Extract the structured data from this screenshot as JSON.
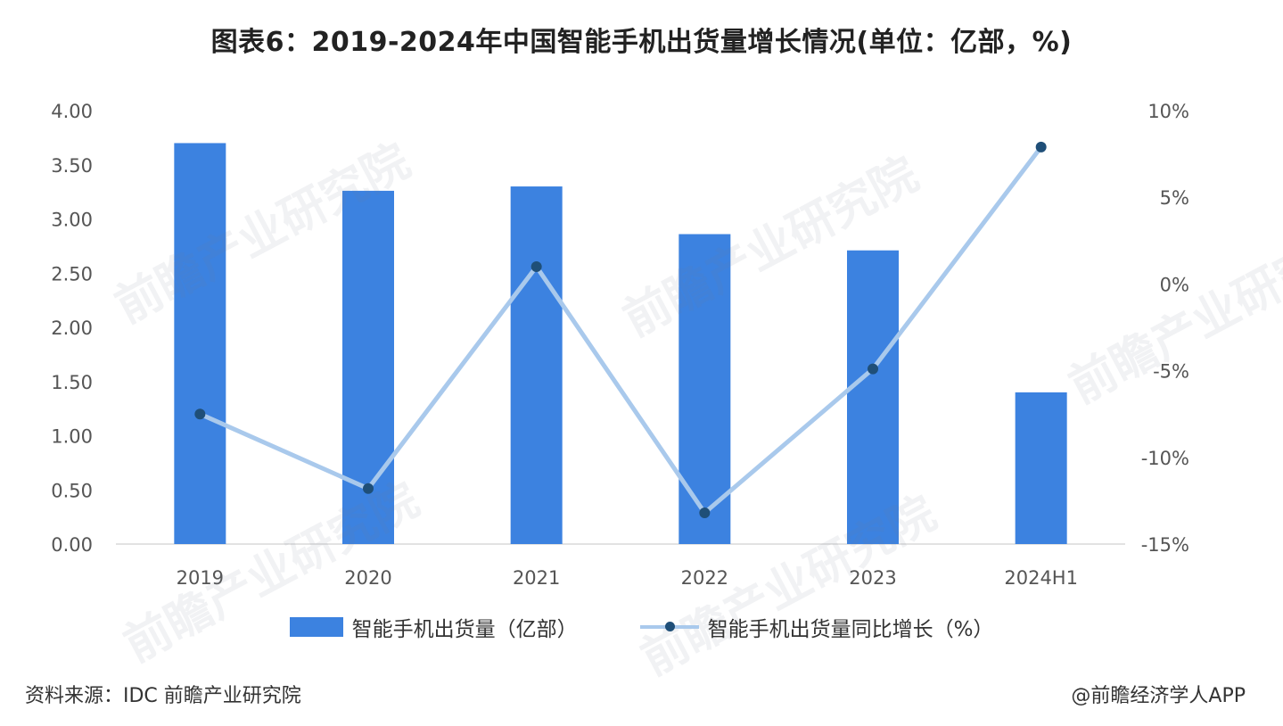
{
  "title": "图表6：2019-2024年中国智能手机出货量增长情况(单位：亿部，%)",
  "source": "资料来源：IDC 前瞻产业研究院",
  "credit": "@前瞻经济学人APP",
  "watermark_text": "前瞻产业研究院",
  "chart_data": {
    "type": "bar",
    "title": "图表6：2019-2024年中国智能手机出货量增长情况(单位：亿部，%)",
    "categories": [
      "2019",
      "2020",
      "2021",
      "2022",
      "2023",
      "2024H1"
    ],
    "series": [
      {
        "name": "智能手机出货量（亿部）",
        "type": "bar",
        "axis": "left",
        "color": "#3c82e0",
        "values": [
          3.7,
          3.26,
          3.3,
          2.86,
          2.71,
          1.4
        ]
      },
      {
        "name": "智能手机出货量同比增长（%）",
        "type": "line",
        "axis": "right",
        "line_color": "#a9c9ec",
        "marker_color": "#1f4f78",
        "values": [
          -7.5,
          -11.8,
          1.0,
          -13.2,
          -4.9,
          7.9
        ]
      }
    ],
    "left_axis": {
      "ylim": [
        0,
        4
      ],
      "ticks": [
        0,
        0.5,
        1.0,
        1.5,
        2.0,
        2.5,
        3.0,
        3.5,
        4.0
      ],
      "tick_labels": [
        "0.00",
        "0.50",
        "1.00",
        "1.50",
        "2.00",
        "2.50",
        "3.00",
        "3.50",
        "4.00"
      ]
    },
    "right_axis": {
      "ylim": [
        -15,
        10
      ],
      "ticks": [
        -15,
        -10,
        -5,
        0,
        5,
        10
      ],
      "tick_labels": [
        "-15%",
        "-10%",
        "-5%",
        "0%",
        "5%",
        "10%"
      ]
    },
    "grid": false,
    "legend_position": "bottom"
  }
}
